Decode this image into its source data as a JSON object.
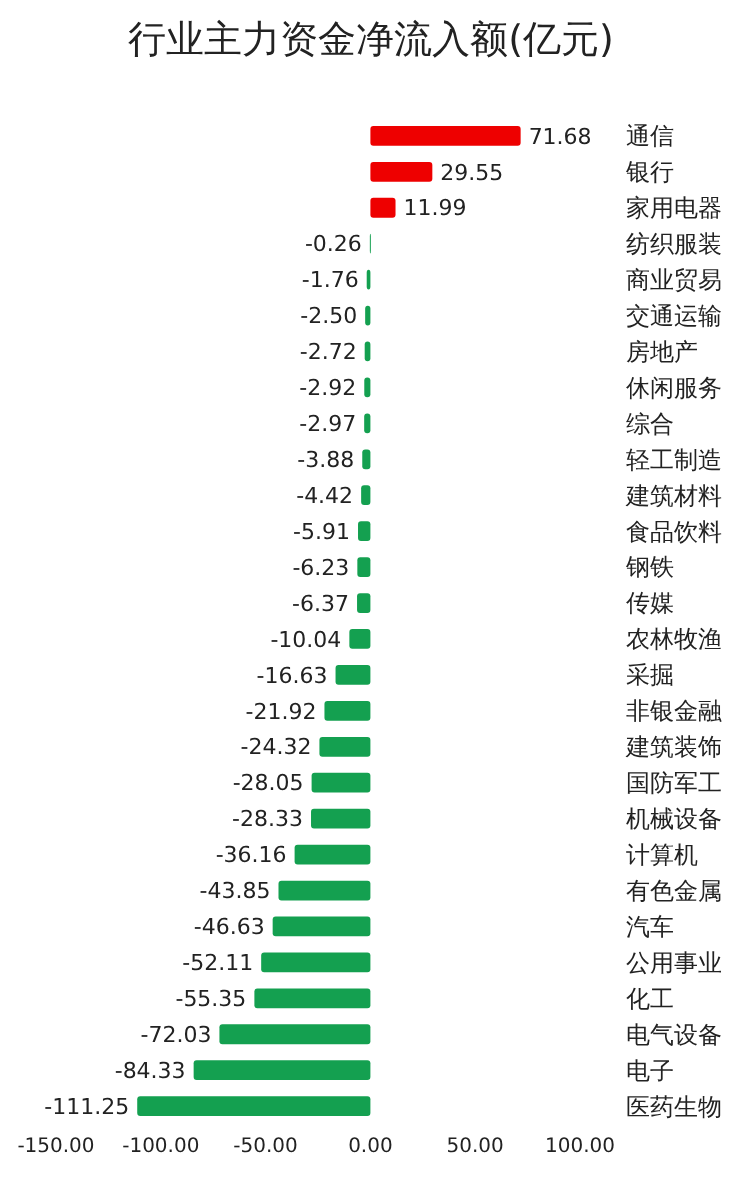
{
  "chart_data": {
    "type": "bar",
    "orientation": "horizontal",
    "title": "行业主力资金净流入额(亿元)",
    "categories": [
      "通信",
      "银行",
      "家用电器",
      "纺织服装",
      "商业贸易",
      "交通运输",
      "房地产",
      "休闲服务",
      "综合",
      "轻工制造",
      "建筑材料",
      "食品饮料",
      "钢铁",
      "传媒",
      "农林牧渔",
      "采掘",
      "非银金融",
      "建筑装饰",
      "国防军工",
      "机械设备",
      "计算机",
      "有色金属",
      "汽车",
      "公用事业",
      "化工",
      "电气设备",
      "电子",
      "医药生物"
    ],
    "values": [
      71.68,
      29.55,
      11.99,
      -0.26,
      -1.76,
      -2.5,
      -2.72,
      -2.92,
      -2.97,
      -3.88,
      -4.42,
      -5.91,
      -6.23,
      -6.37,
      -10.04,
      -16.63,
      -21.92,
      -24.32,
      -28.05,
      -28.33,
      -36.16,
      -43.85,
      -46.63,
      -52.11,
      -55.35,
      -72.03,
      -84.33,
      -111.25
    ],
    "colors": [
      "#ee0000",
      "#ee0000",
      "#ee0000",
      "#14a050",
      "#14a050",
      "#14a050",
      "#14a050",
      "#14a050",
      "#14a050",
      "#14a050",
      "#14a050",
      "#14a050",
      "#14a050",
      "#14a050",
      "#14a050",
      "#14a050",
      "#14a050",
      "#14a050",
      "#14a050",
      "#14a050",
      "#14a050",
      "#14a050",
      "#14a050",
      "#14a050",
      "#14a050",
      "#14a050",
      "#14a050",
      "#14a050"
    ],
    "value_labels": [
      "71.68",
      "29.55",
      "11.99",
      "-0.26",
      "-1.76",
      "-2.50",
      "-2.72",
      "-2.92",
      "-2.97",
      "-3.88",
      "-4.42",
      "-5.91",
      "-6.23",
      "-6.37",
      "-10.04",
      "-16.63",
      "-21.92",
      "-24.32",
      "-28.05",
      "-28.33",
      "-36.16",
      "-43.85",
      "-46.63",
      "-52.11",
      "-55.35",
      "-72.03",
      "-84.33",
      "-111.25"
    ],
    "grid": false,
    "xlim": [
      -150,
      100
    ],
    "xticks": [
      {
        "value": -150,
        "label": "-150.00"
      },
      {
        "value": -100,
        "label": "-100.00"
      },
      {
        "value": -50,
        "label": "-50.00"
      },
      {
        "value": 0,
        "label": "0.00"
      },
      {
        "value": 50,
        "label": "50.00"
      },
      {
        "value": 100,
        "label": "100.00"
      }
    ]
  }
}
